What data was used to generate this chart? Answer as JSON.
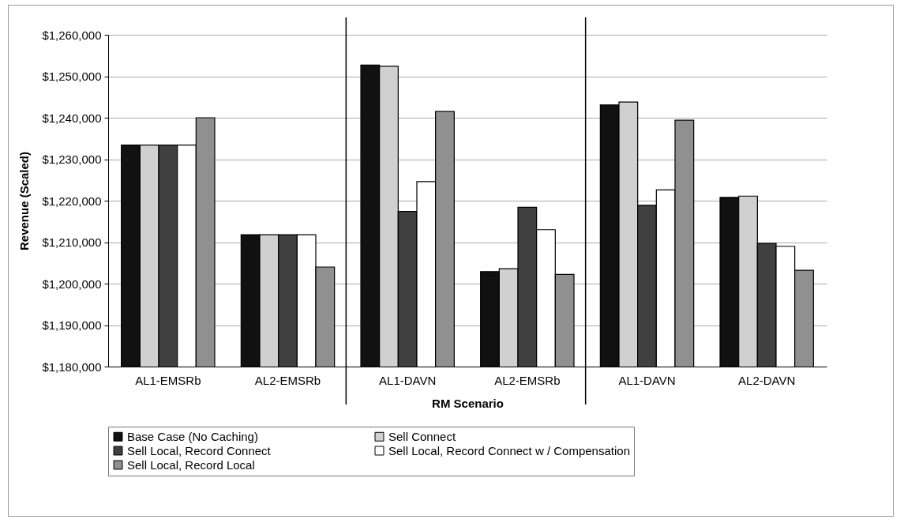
{
  "chart_data": {
    "type": "bar",
    "xlabel": "RM Scenario",
    "ylabel": "Revenue (Scaled)",
    "categories": [
      "AL1-EMSRb",
      "AL2-EMSRb",
      "AL1-DAVN",
      "AL2-EMSRb",
      "AL1-DAVN",
      "AL2-DAVN"
    ],
    "series": [
      {
        "name": "Base Case (No Caching)",
        "color": "#111111",
        "values": [
          1233400,
          1211800,
          1252700,
          1202900,
          1243100,
          1220800
        ]
      },
      {
        "name": "Sell Connect",
        "color": "#d0d0d0",
        "values": [
          1233400,
          1211800,
          1252400,
          1203600,
          1243800,
          1221100
        ]
      },
      {
        "name": "Sell Local, Record Connect",
        "color": "#404040",
        "values": [
          1233400,
          1211800,
          1217400,
          1218400,
          1218900,
          1209700
        ]
      },
      {
        "name": "Sell Local, Record Connect w / Compensation",
        "color": "#ffffff",
        "values": [
          1233400,
          1211800,
          1224600,
          1213000,
          1222600,
          1209000
        ]
      },
      {
        "name": "Sell Local, Record Local",
        "color": "#909090",
        "values": [
          1240000,
          1204000,
          1241500,
          1202200,
          1239400,
          1203200
        ]
      }
    ],
    "ylim": [
      1180000,
      1260000
    ],
    "yticks": [
      {
        "value": 1180000,
        "label": "$1,180,000"
      },
      {
        "value": 1190000,
        "label": "$1,190,000"
      },
      {
        "value": 1200000,
        "label": "$1,200,000"
      },
      {
        "value": 1210000,
        "label": "$1,210,000"
      },
      {
        "value": 1220000,
        "label": "$1,220,000"
      },
      {
        "value": 1230000,
        "label": "$1,230,000"
      },
      {
        "value": 1240000,
        "label": "$1,240,000"
      },
      {
        "value": 1250000,
        "label": "$1,250,000"
      },
      {
        "value": 1260000,
        "label": "$1,260,000"
      }
    ],
    "grid": "y",
    "legend": "bottom"
  }
}
